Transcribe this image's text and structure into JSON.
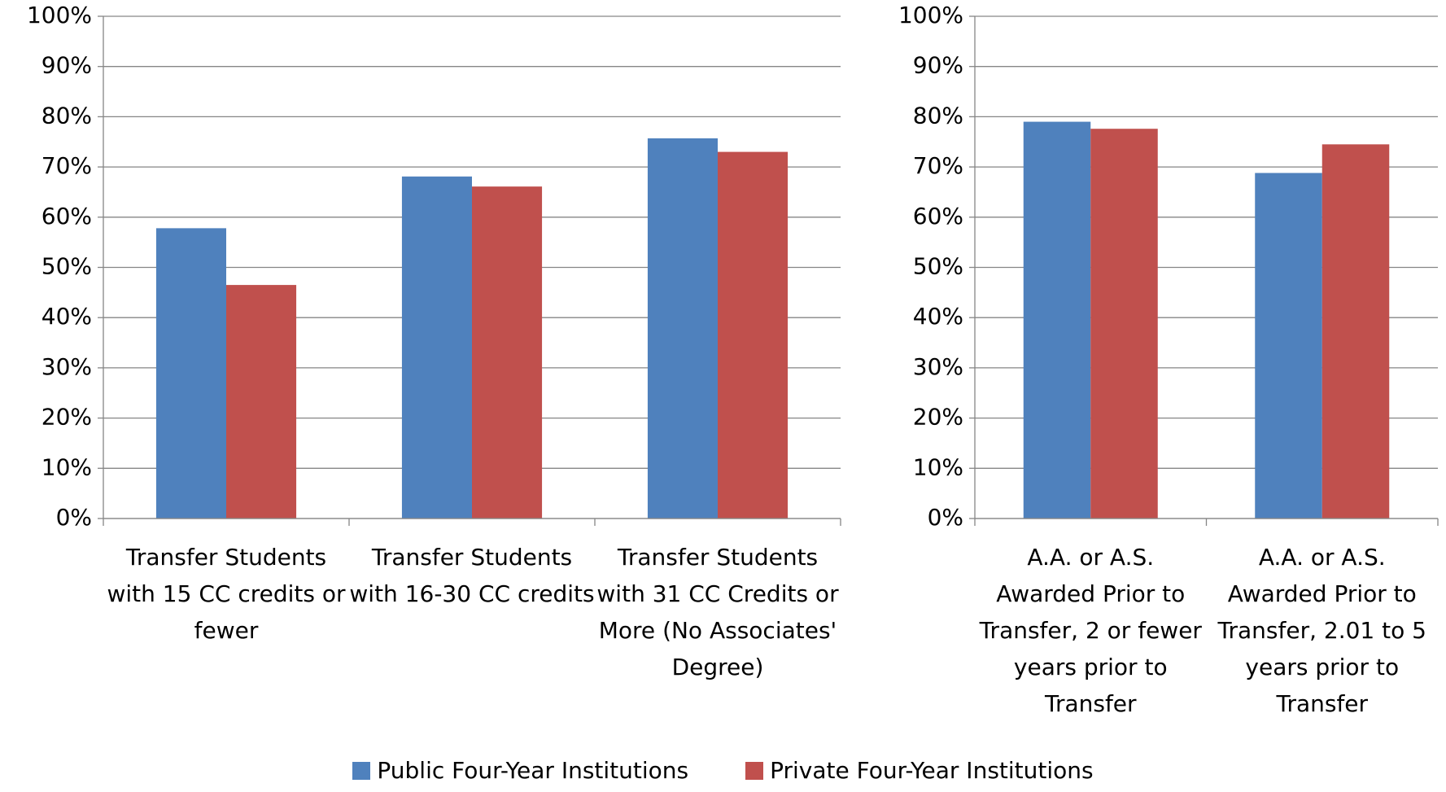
{
  "chart_data": [
    {
      "type": "bar",
      "categories": [
        "Transfer Students with 15 CC credits or fewer",
        "Transfer Students with 16-30 CC credits",
        "Transfer Students with 31 CC Credits or More (No Associates' Degree)"
      ],
      "series": [
        {
          "name": "Public Four-Year Institutions",
          "color": "#4f81bd",
          "values": [
            57.8,
            68.1,
            75.7
          ]
        },
        {
          "name": "Private Four-Year Institutions",
          "color": "#c0504d",
          "values": [
            46.5,
            66.1,
            73.0
          ]
        }
      ],
      "ylim": [
        0,
        100
      ],
      "yticks": [
        {
          "value": 0,
          "label": "0%"
        },
        {
          "value": 10,
          "label": "10%"
        },
        {
          "value": 20,
          "label": "20%"
        },
        {
          "value": 30,
          "label": "30%"
        },
        {
          "value": 40,
          "label": "40%"
        },
        {
          "value": 50,
          "label": "50%"
        },
        {
          "value": 60,
          "label": "60%"
        },
        {
          "value": 70,
          "label": "70%"
        },
        {
          "value": 80,
          "label": "80%"
        },
        {
          "value": 90,
          "label": "90%"
        },
        {
          "value": 100,
          "label": "100%"
        }
      ],
      "grid": true
    },
    {
      "type": "bar",
      "categories": [
        "A.A. or A.S. Awarded Prior to Transfer, 2 or fewer years prior to Transfer",
        "A.A. or A.S. Awarded Prior to Transfer, 2.01 to 5 years prior to Transfer"
      ],
      "series": [
        {
          "color": "#4f81bd",
          "values": [
            79.0,
            68.8
          ]
        },
        {
          "color": "#c0504d",
          "values": [
            77.6,
            74.5
          ]
        }
      ],
      "ylim": [
        0,
        100
      ],
      "yticks": [
        {
          "value": 0,
          "label": "0%"
        },
        {
          "value": 10,
          "label": "10%"
        },
        {
          "value": 20,
          "label": "20%"
        },
        {
          "value": 30,
          "label": "30%"
        },
        {
          "value": 40,
          "label": "40%"
        },
        {
          "value": 50,
          "label": "50%"
        },
        {
          "value": 60,
          "label": "60%"
        },
        {
          "value": 70,
          "label": "70%"
        },
        {
          "value": 80,
          "label": "80%"
        },
        {
          "value": 90,
          "label": "90%"
        },
        {
          "value": 100,
          "label": "100%"
        }
      ],
      "grid": true
    }
  ]
}
